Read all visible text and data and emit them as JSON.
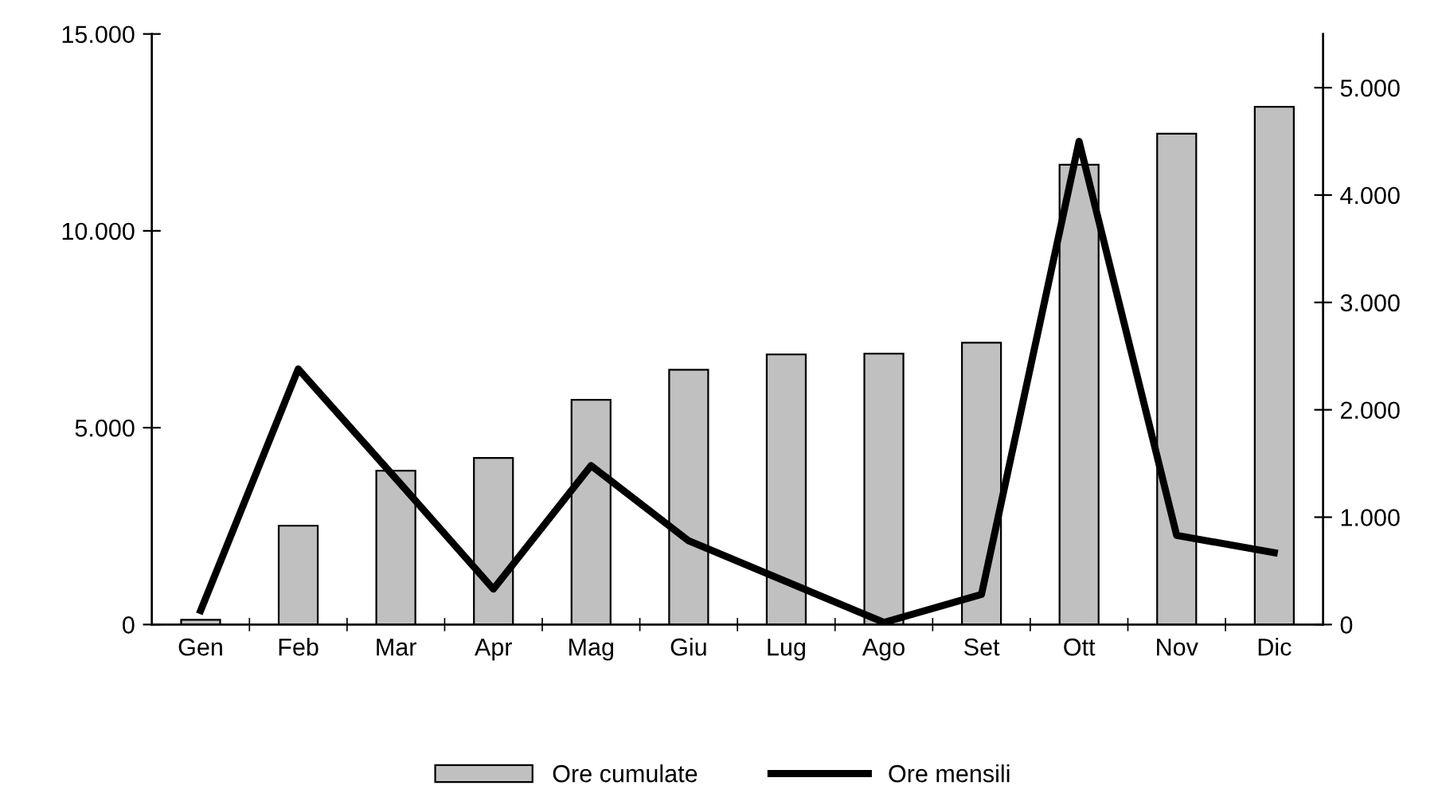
{
  "chart_data": {
    "type": "bar",
    "categories": [
      "Gen",
      "Feb",
      "Mar",
      "Apr",
      "Mag",
      "Giu",
      "Lug",
      "Ago",
      "Set",
      "Ott",
      "Nov",
      "Dic"
    ],
    "series": [
      {
        "name": "Ore cumulate",
        "color": "#c0c0c0",
        "values": [
          120,
          2510,
          3910,
          4230,
          5710,
          6470,
          6860,
          6880,
          7160,
          11680,
          12470,
          13150
        ]
      },
      {
        "name": "Ore mensili",
        "type": "line",
        "axis": "y2",
        "color": "#000000",
        "values": [
          130,
          2380,
          1360,
          330,
          1480,
          780,
          400,
          20,
          280,
          4500,
          830,
          670
        ]
      }
    ],
    "ylim": [
      0,
      15000
    ],
    "yticks": [
      {
        "value": 0,
        "label": "0"
      },
      {
        "value": 5000,
        "label": "5.000"
      },
      {
        "value": 10000,
        "label": "10.000"
      },
      {
        "value": 15000,
        "label": "15.000"
      }
    ],
    "y2lim": [
      0,
      5500
    ],
    "y2ticks": [
      {
        "value": 0,
        "label": "0"
      },
      {
        "value": 1000,
        "label": "1.000"
      },
      {
        "value": 2000,
        "label": "2.000"
      },
      {
        "value": 3000,
        "label": "3.000"
      },
      {
        "value": 4000,
        "label": "4.000"
      },
      {
        "value": 5000,
        "label": "5.000"
      }
    ],
    "grid": false,
    "legend": "bottom",
    "marker": "none",
    "line_style": "solid"
  }
}
